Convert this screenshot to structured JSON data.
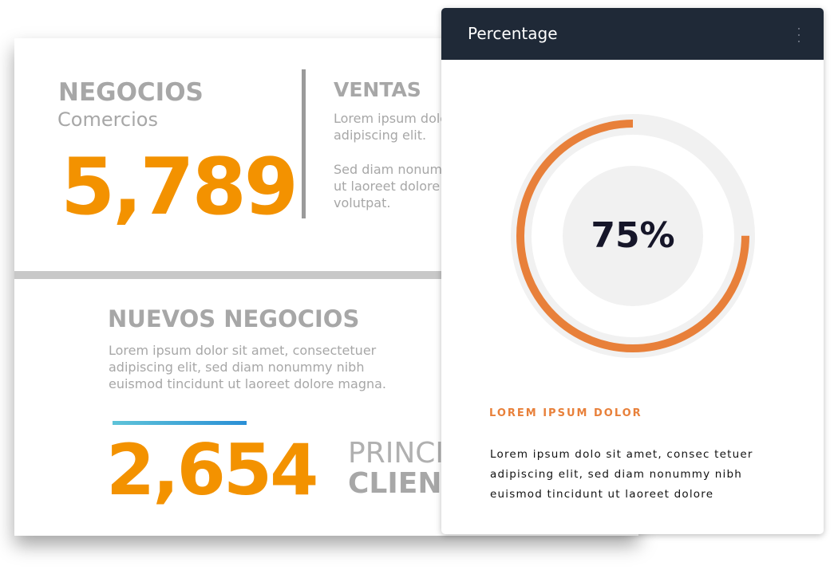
{
  "negocios": {
    "title": "NEGOCIOS",
    "subtitle": "Comercios",
    "number": "5,789"
  },
  "ventas": {
    "title": "VENTAS",
    "paragraphs": [
      [
        "Lorem ipsum dolor sit amet, consectetuer",
        "adipiscing elit."
      ],
      [
        "Sed diam nonummy nibh euismod tincidunt",
        "ut laoreet dolore magna aliquam erat",
        "volutpat."
      ]
    ]
  },
  "nuevos": {
    "title": "NUEVOS NEGOCIOS",
    "lines": [
      "Lorem ipsum dolor sit amet, consectetuer",
      "adipiscing elit, sed diam nonummy nibh",
      "euismod tincidunt ut laoreet dolore magna."
    ],
    "number": "2,654",
    "caption_light": "PRINCIPALES",
    "caption_bold": "CLIENTES"
  },
  "card": {
    "title": "Percentage",
    "percentage": {
      "value": 75,
      "label": "75%"
    },
    "heading": "LOREM IPSUM DOLOR",
    "lines": [
      "Lorem ipsum dolo sit amet, consec tetuer",
      "adipiscing elit, sed diam nonummy nibh",
      "euismod tincidunt ut laoreet dolore"
    ]
  }
}
